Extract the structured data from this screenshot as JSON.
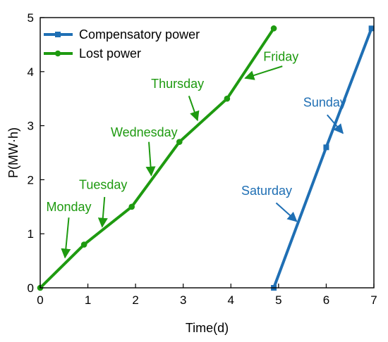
{
  "chart_data": {
    "type": "line",
    "xlabel": "Time(d)",
    "ylabel": "P(MW·h)",
    "xlim": [
      0,
      7
    ],
    "ylim": [
      0,
      5
    ],
    "xticks": [
      0,
      1,
      2,
      3,
      4,
      5,
      6,
      7
    ],
    "yticks": [
      0,
      1,
      2,
      3,
      4,
      5
    ],
    "legend_position": "top-left",
    "series": [
      {
        "name": "Compensatory power",
        "color": "#1f6fb4",
        "marker": "square",
        "x": [
          4.9,
          6.0,
          6.95
        ],
        "y": [
          0.0,
          2.6,
          4.8
        ]
      },
      {
        "name": "Lost power",
        "color": "#1e9a10",
        "marker": "circle",
        "x": [
          0,
          0.92,
          1.92,
          2.92,
          3.92,
          4.9
        ],
        "y": [
          0,
          0.8,
          1.5,
          2.7,
          3.5,
          4.8
        ]
      }
    ],
    "annotations": [
      {
        "text": "Monday",
        "color": "#1e9a10",
        "text_x": 0.6,
        "text_y": 1.42,
        "tail": [
          0.6,
          1.3
        ],
        "head": [
          0.52,
          0.56
        ]
      },
      {
        "text": "Tuesday",
        "color": "#1e9a10",
        "text_x": 1.32,
        "text_y": 1.83,
        "tail": [
          1.35,
          1.68
        ],
        "head": [
          1.3,
          1.13
        ]
      },
      {
        "text": "Wednesday",
        "color": "#1e9a10",
        "text_x": 2.18,
        "text_y": 2.8,
        "tail": [
          2.28,
          2.7
        ],
        "head": [
          2.33,
          2.08
        ]
      },
      {
        "text": "Thursday",
        "color": "#1e9a10",
        "text_x": 2.88,
        "text_y": 3.7,
        "tail": [
          3.12,
          3.55
        ],
        "head": [
          3.3,
          3.1
        ]
      },
      {
        "text": "Friday",
        "color": "#1e9a10",
        "text_x": 5.05,
        "text_y": 4.2,
        "tail": [
          5.08,
          4.1
        ],
        "head": [
          4.3,
          3.88
        ]
      },
      {
        "text": "Sunday",
        "color": "#1f6fb4",
        "text_x": 5.97,
        "text_y": 3.35,
        "tail": [
          6.02,
          3.2
        ],
        "head": [
          6.35,
          2.86
        ]
      },
      {
        "text": "Saturday",
        "color": "#1f6fb4",
        "text_x": 4.75,
        "text_y": 1.72,
        "tail": [
          4.95,
          1.57
        ],
        "head": [
          5.38,
          1.23
        ]
      }
    ]
  }
}
